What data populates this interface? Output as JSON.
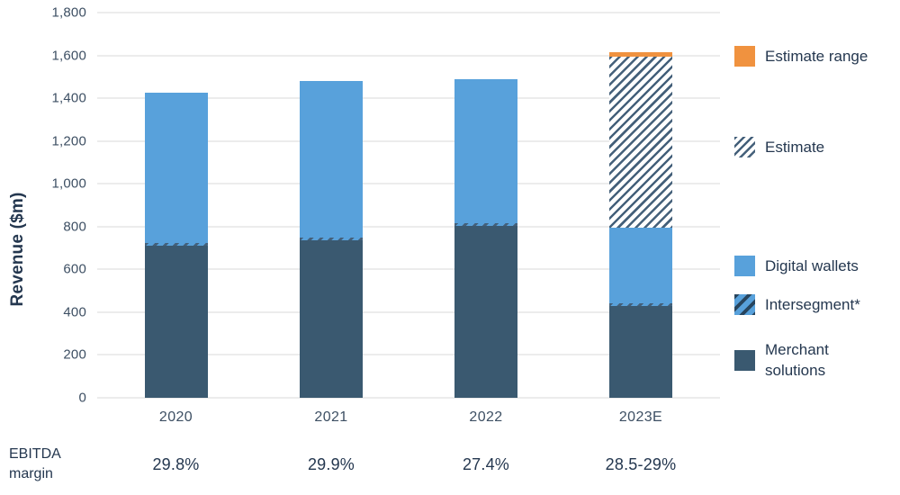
{
  "chart_data": {
    "type": "bar",
    "stacked": true,
    "ylabel": "Revenue ($m)",
    "ylim": [
      0,
      1800
    ],
    "ytick_step": 200,
    "grid": true,
    "categories": [
      "2020",
      "2021",
      "2022",
      "2023E"
    ],
    "series": [
      {
        "name": "Merchant solutions",
        "key": "merchant",
        "values": [
          710,
          735,
          805,
          430
        ]
      },
      {
        "name": "Intersegment*",
        "key": "intersegment",
        "values": [
          12,
          12,
          12,
          12
        ]
      },
      {
        "name": "Digital wallets",
        "key": "digital",
        "values": [
          703,
          733,
          673,
          353
        ]
      },
      {
        "name": "Estimate",
        "key": "estimate",
        "values": [
          0,
          0,
          0,
          800
        ]
      },
      {
        "name": "Estimate range",
        "key": "estimate_range",
        "values": [
          0,
          0,
          0,
          20
        ]
      }
    ],
    "bar_totals": [
      1425,
      1480,
      1490,
      1615
    ],
    "legend": {
      "position": "right",
      "items": [
        {
          "label": "Estimate range",
          "key": "estimate_range"
        },
        {
          "label": "Estimate",
          "key": "estimate"
        },
        {
          "label": "Digital wallets",
          "key": "digital"
        },
        {
          "label": "Intersegment*",
          "key": "intersegment"
        },
        {
          "label": "Merchant solutions",
          "key": "merchant"
        }
      ]
    },
    "ebitda": {
      "label": "EBITDA margin",
      "values": [
        "29.8%",
        "29.9%",
        "27.4%",
        "28.5-29%"
      ]
    },
    "colors": {
      "digital": "#58A1DB",
      "merchant": "#3A5970",
      "orange": "#F0923F",
      "hatch": "#44607A",
      "grid": "#ECECEC",
      "text": "#3D4F63",
      "title": "#24374F"
    }
  }
}
